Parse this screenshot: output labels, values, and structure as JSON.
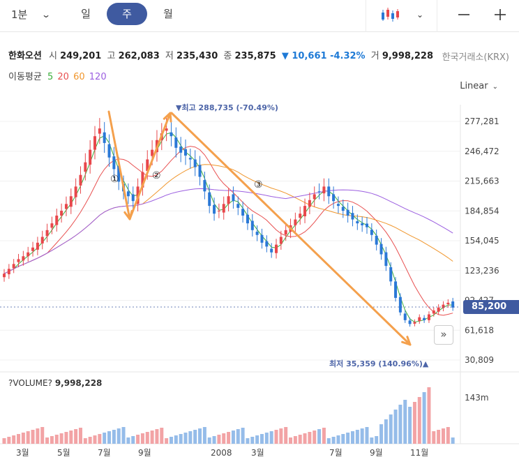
{
  "toolbar": {
    "timeframe": "1분",
    "tabs": [
      "일",
      "주",
      "월"
    ],
    "active_tab": "주",
    "icons": [
      "candlestick-icon",
      "chevron-down-icon",
      "minus-icon",
      "plus-icon"
    ]
  },
  "stock": {
    "name": "한화오션",
    "open_label": "시",
    "open": "249,201",
    "high_label": "고",
    "high": "262,083",
    "low_label": "저",
    "low": "235,430",
    "close_label": "종",
    "close": "235,875",
    "change": "▼ 10,661 -4.32%",
    "volume_label": "거",
    "volume": "9,998,228",
    "exchange": "한국거래소(KRX)"
  },
  "moving_average": {
    "label": "이동평균",
    "periods": [
      {
        "value": "5",
        "color": "#3cae3c"
      },
      {
        "value": "20",
        "color": "#e85050"
      },
      {
        "value": "60",
        "color": "#f0962c"
      },
      {
        "value": "120",
        "color": "#9b5ee0"
      }
    ]
  },
  "scale_mode": "Linear",
  "chart_data": {
    "type": "candlestick",
    "y_ticks": [
      "277,281",
      "246,472",
      "215,663",
      "184,854",
      "154,045",
      "123,236",
      "92,427",
      "61,618",
      "30,809"
    ],
    "x_ticks": [
      "3월",
      "5월",
      "7월",
      "9월",
      "2008",
      "3월",
      "7월",
      "9월",
      "11월"
    ],
    "current_price": "85,200",
    "high_marker": "▼최고 288,735 (-70.49%)",
    "low_marker": "최저 35,359 (140.96%)▲",
    "annotations": [
      "①",
      "②",
      "③"
    ],
    "volume_title": "?VOLUME?",
    "volume_value": "9,998,228",
    "volume_tick": "143m",
    "colors": {
      "up": "#e8474b",
      "down": "#2a78d6",
      "arrow": "#f4a04c"
    }
  }
}
